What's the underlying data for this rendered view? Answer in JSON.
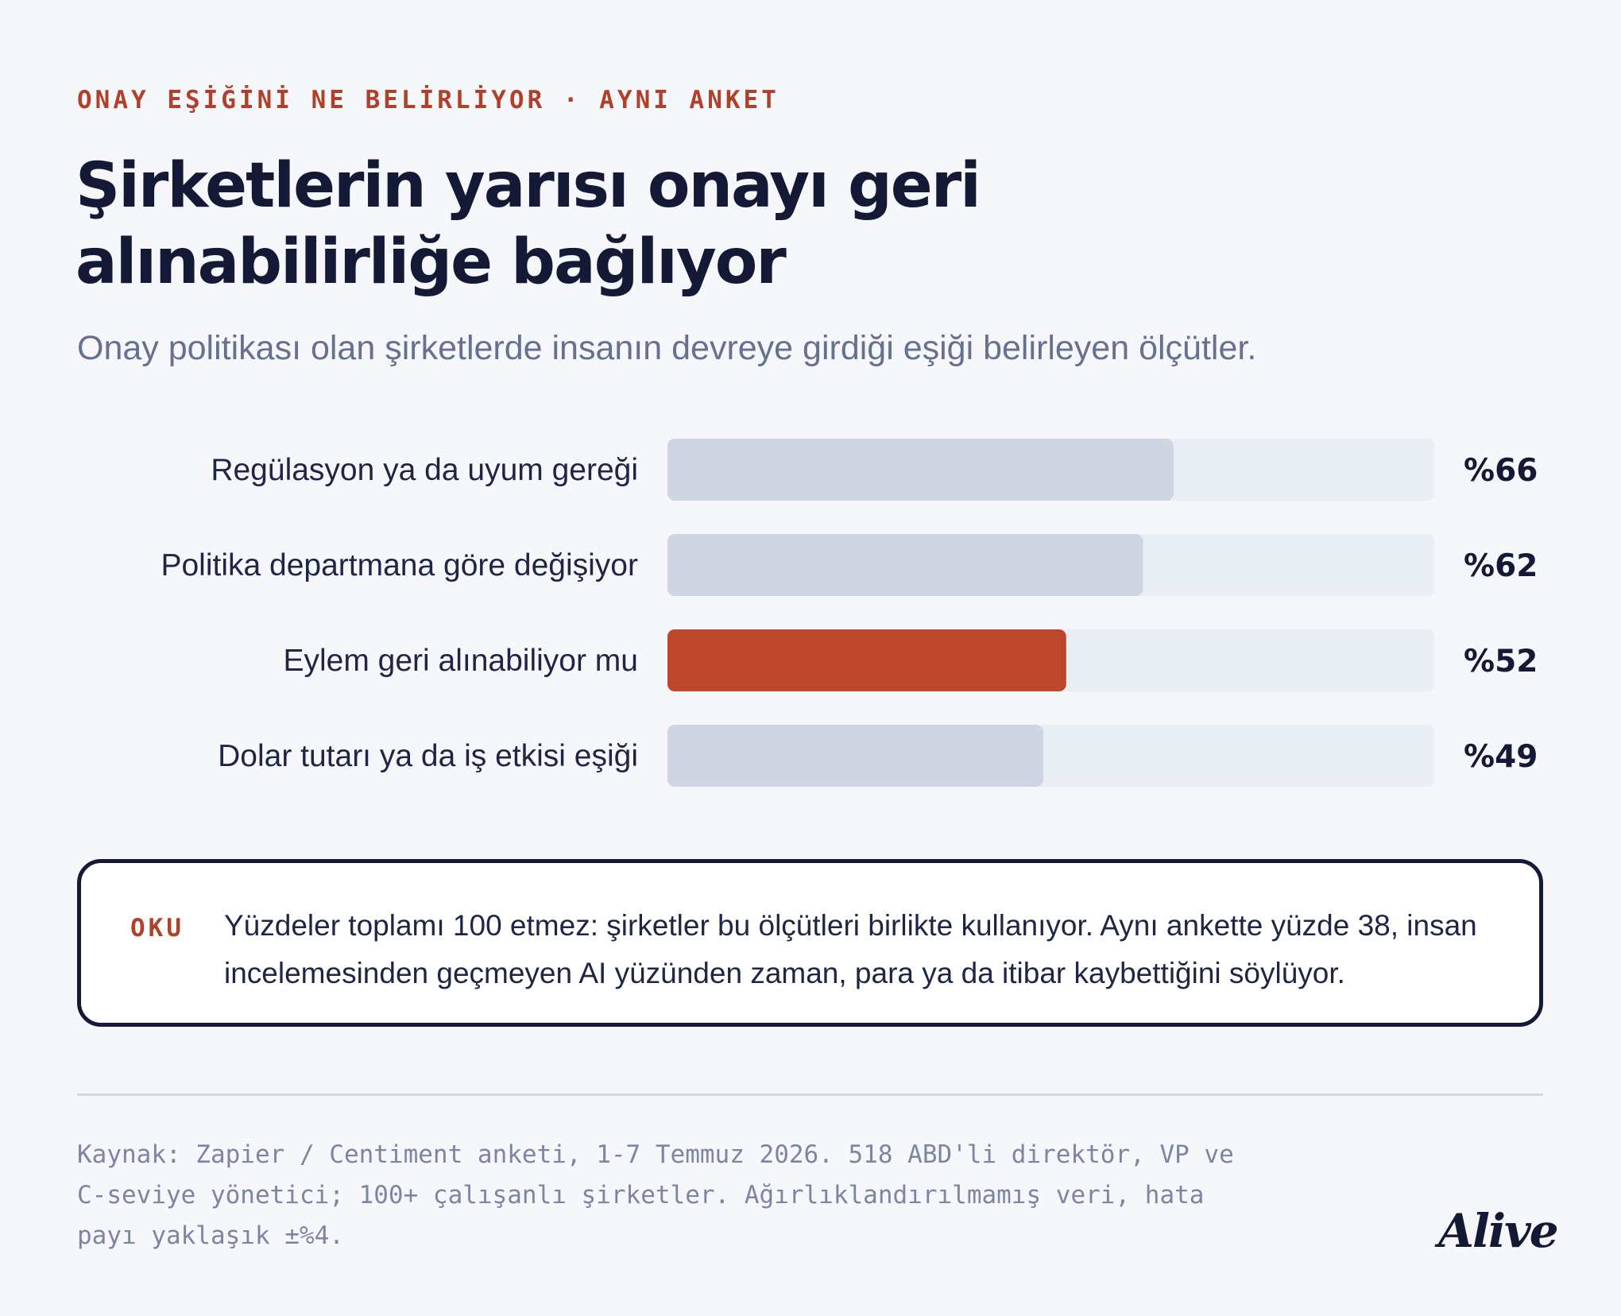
{
  "header": {
    "kicker": "ONAY EŞİĞİNİ NE BELİRLİYOR · AYNI ANKET",
    "title": "Şirketlerin yarısı onayı geri alınabilirliğe bağlıyor",
    "subtitle": "Onay politikası olan şirketlerde insanın devreye girdiği eşiği belirleyen ölçütler."
  },
  "colors": {
    "highlight": "#bd472b",
    "bar": "#cfd5e3",
    "track": "#e9edf4",
    "accent_text": "#b0402a"
  },
  "chart_data": {
    "type": "bar",
    "orientation": "horizontal",
    "categories": [
      "Regülasyon ya da uyum gereği",
      "Politika departmana göre değişiyor",
      "Eylem geri alınabiliyor mu",
      "Dolar tutarı ya da iş etkisi eşiği"
    ],
    "values": [
      66,
      62,
      52,
      49
    ],
    "value_labels": [
      "%66",
      "%62",
      "%52",
      "%49"
    ],
    "highlighted_category": "Eylem geri alınabiliyor mu",
    "xlim": [
      0,
      100
    ],
    "grid": false
  },
  "note": {
    "tag": "OKU",
    "text": "Yüzdeler toplamı 100 etmez: şirketler bu ölçütleri birlikte kullanıyor. Aynı ankette yüzde 38, insan incelemesinden geçmeyen AI yüzünden zaman, para ya da itibar kaybettiğini söylüyor."
  },
  "footer": {
    "source": "Kaynak: Zapier / Centiment anketi, 1-7 Temmuz 2026. 518 ABD'li direktör, VP ve C-seviye yönetici; 100+ çalışanlı şirketler. Ağırlıklandırılmamış veri, hata payı yaklaşık ±%4.",
    "logo": "Alive"
  }
}
